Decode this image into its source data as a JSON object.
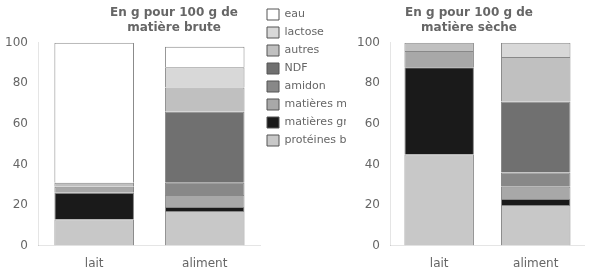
{
  "chart_data": [
    {
      "type": "bar",
      "stacked": true,
      "title": "En g pour 100 g de\nmatière brute",
      "categories": [
        "lait",
        "aliment"
      ],
      "series": [
        {
          "name": "protéines brutes",
          "color": "#c8c8c8",
          "values": [
            13,
            17
          ]
        },
        {
          "name": "matières grasses",
          "color": "#1a1a1a",
          "values": [
            13,
            2
          ]
        },
        {
          "name": "matières minérales",
          "color": "#a8a8a8",
          "values": [
            3,
            6
          ]
        },
        {
          "name": "amidon",
          "color": "#888888",
          "values": [
            0,
            6
          ]
        },
        {
          "name": "NDF",
          "color": "#707070",
          "values": [
            0,
            35
          ]
        },
        {
          "name": "autres",
          "color": "#c0c0c0",
          "values": [
            2,
            12
          ]
        },
        {
          "name": "lactose",
          "color": "#d8d8d8",
          "values": [
            0,
            10
          ]
        },
        {
          "name": "eau",
          "color": "#ffffff",
          "values": [
            69,
            10
          ]
        }
      ],
      "ylim": [
        0,
        100
      ],
      "yticks": [
        0,
        20,
        40,
        60,
        80,
        100
      ],
      "grid": false,
      "legend": "right"
    },
    {
      "type": "bar",
      "stacked": true,
      "title": "En g pour 100 g de\nmatière sèche",
      "categories": [
        "lait",
        "aliment"
      ],
      "series": [
        {
          "name": "protéines brutes",
          "color": "#c8c8c8",
          "values": [
            45,
            20
          ]
        },
        {
          "name": "matières grasses",
          "color": "#1a1a1a",
          "values": [
            43,
            3
          ]
        },
        {
          "name": "matières minérales",
          "color": "#a8a8a8",
          "values": [
            8,
            6
          ]
        },
        {
          "name": "amidon",
          "color": "#888888",
          "values": [
            0,
            7
          ]
        },
        {
          "name": "NDF",
          "color": "#707070",
          "values": [
            0,
            35
          ]
        },
        {
          "name": "autres",
          "color": "#c0c0c0",
          "values": [
            4,
            22
          ]
        },
        {
          "name": "lactose",
          "color": "#d8d8d8",
          "values": [
            0,
            7
          ]
        },
        {
          "name": "eau",
          "color": "#ffffff",
          "values": [
            0,
            0
          ]
        }
      ],
      "ylim": [
        0,
        100
      ],
      "yticks": [
        0,
        20,
        40,
        60,
        80,
        100
      ],
      "grid": false
    }
  ]
}
